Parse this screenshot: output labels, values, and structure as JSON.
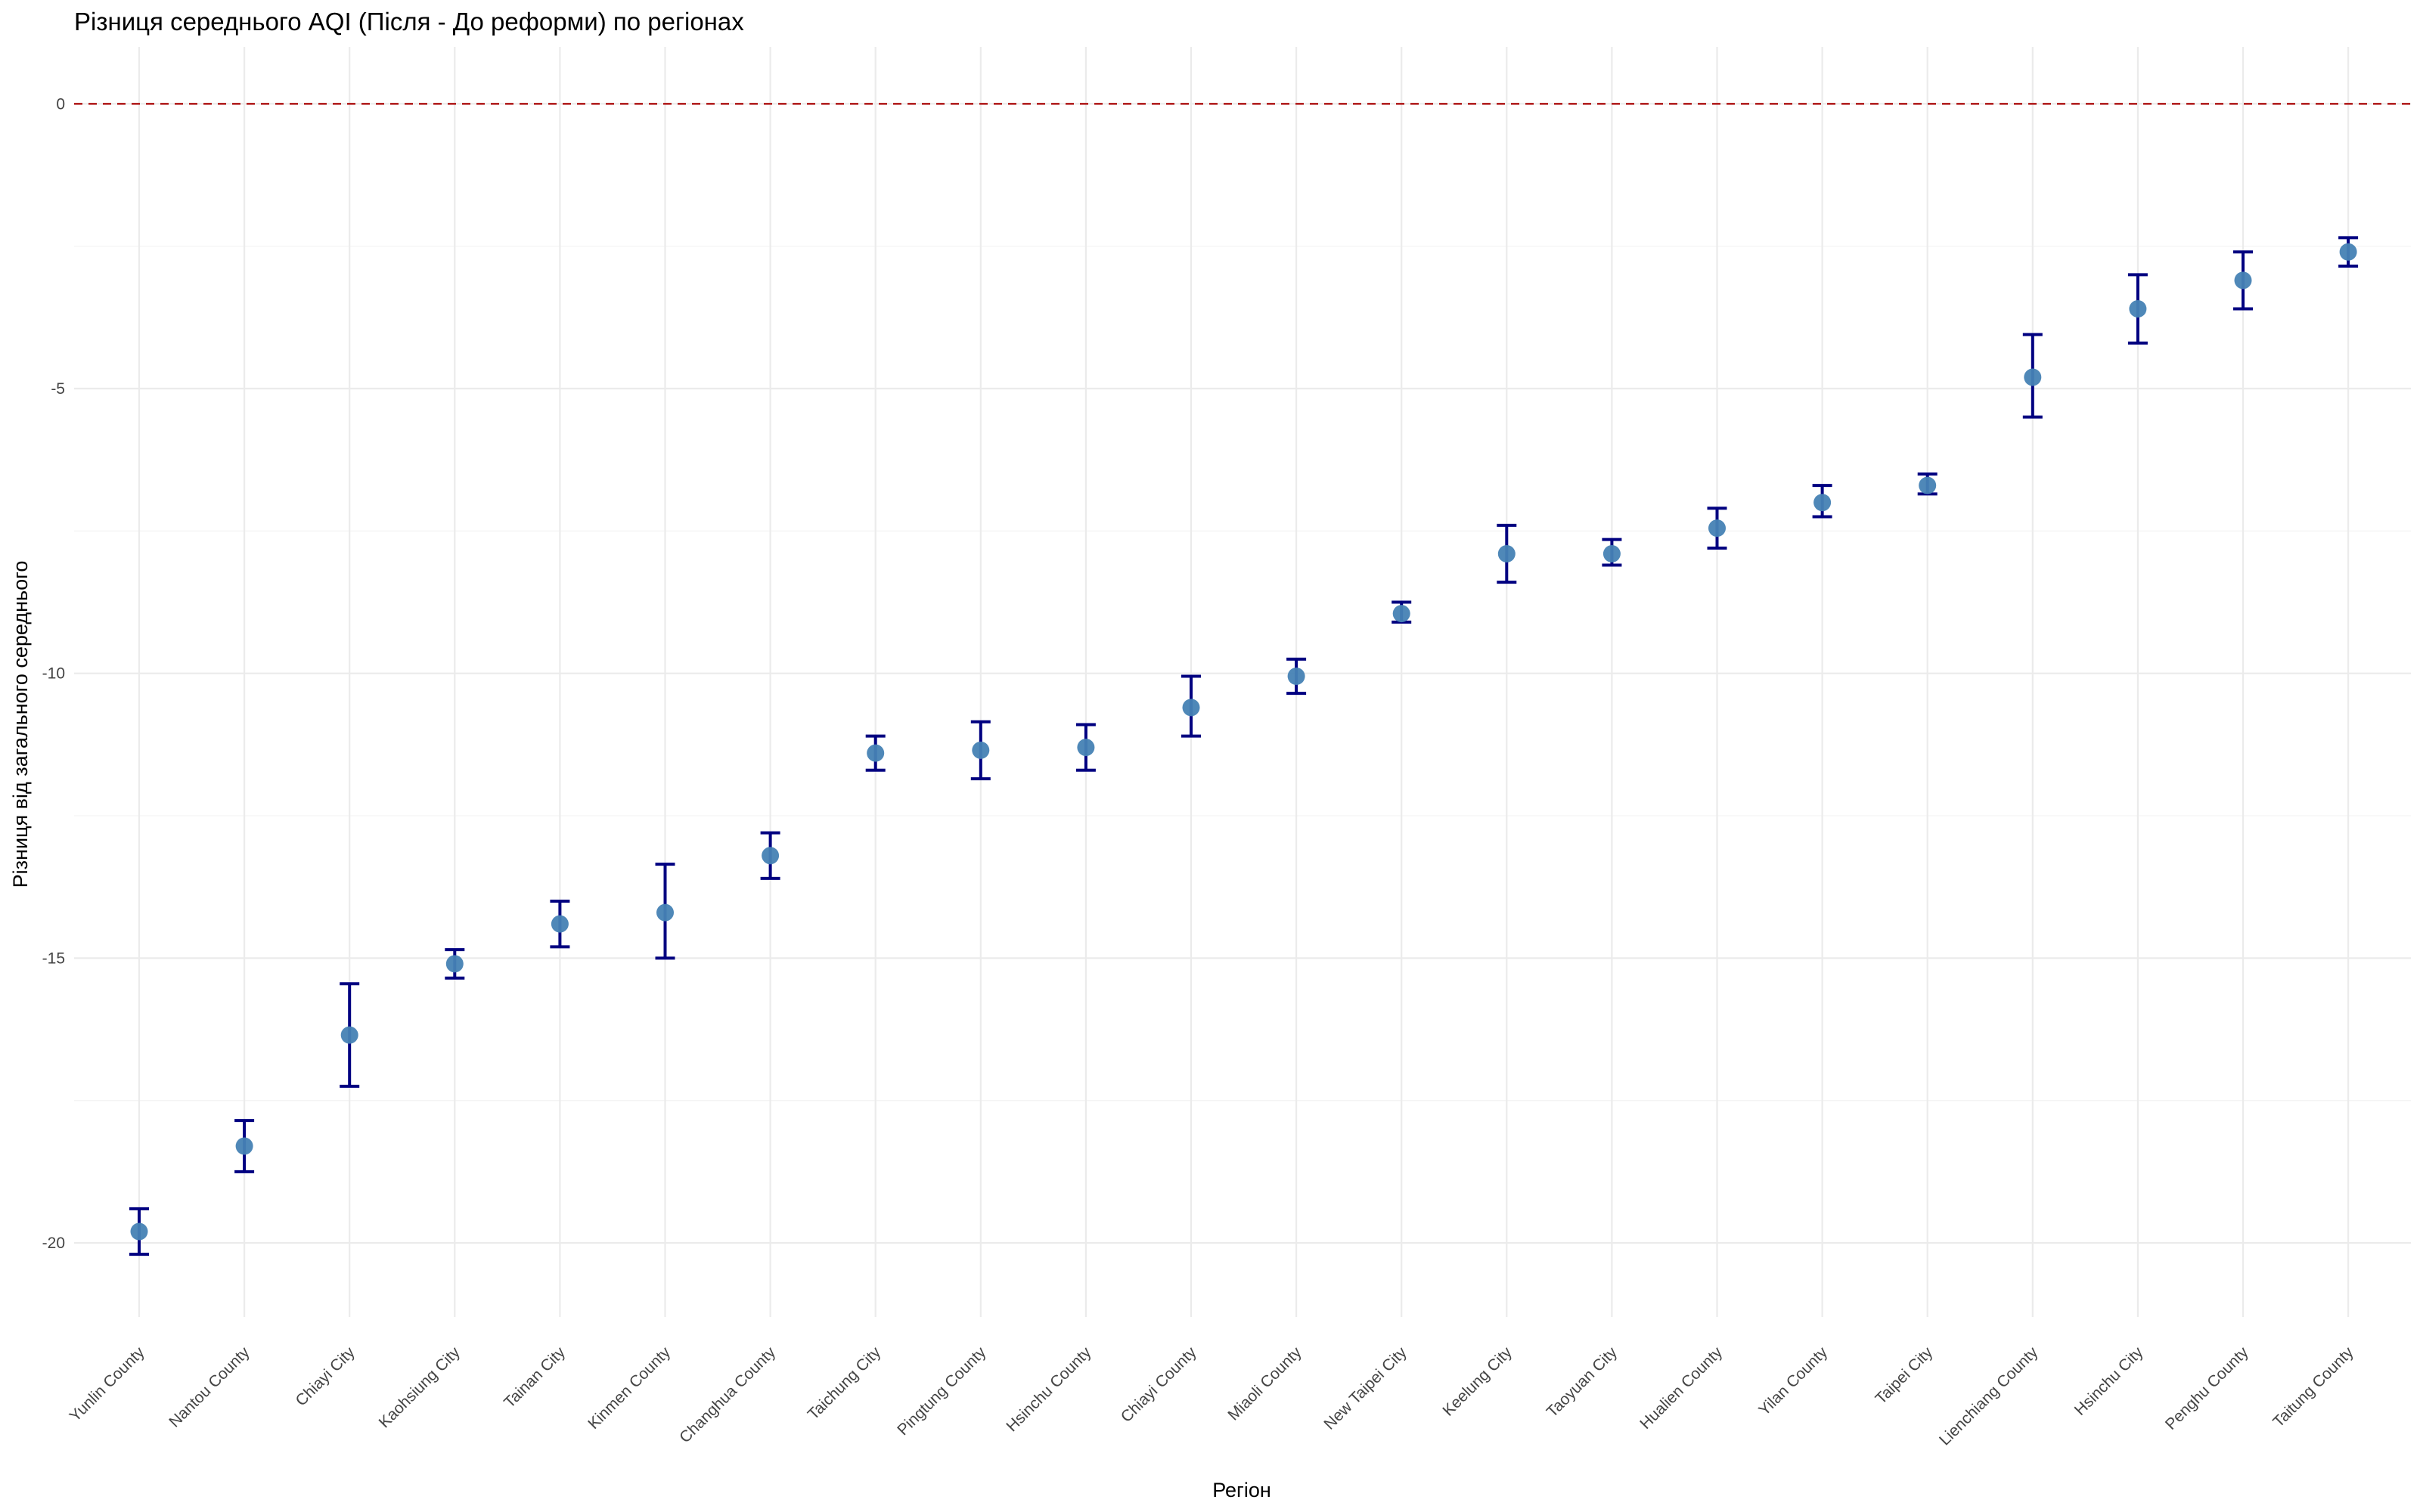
{
  "chart_data": {
    "type": "scatter",
    "title": "Різниця середнього AQI (Після - До реформи) по регіонах",
    "xlabel": "Регіон",
    "ylabel": "Різниця від загального середнього",
    "ylim": [
      -21.3,
      1.0
    ],
    "yticks": [
      0,
      -5,
      -10,
      -15,
      -20
    ],
    "grid": true,
    "reference_line": {
      "y": 0,
      "style": "dashed",
      "color": "#b22222"
    },
    "point_color": "#4682b4",
    "errorbar_color": "#000080",
    "categories": [
      "Yunlin County",
      "Nantou County",
      "Chiayi City",
      "Kaohsiung City",
      "Tainan City",
      "Kinmen County",
      "Changhua County",
      "Taichung City",
      "Pingtung County",
      "Hsinchu County",
      "Chiayi County",
      "Miaoli County",
      "New Taipei City",
      "Keelung City",
      "Taoyuan City",
      "Hualien County",
      "Yilan County",
      "Taipei City",
      "Lienchiang County",
      "Hsinchu City",
      "Penghu County",
      "Taitung County"
    ],
    "values": [
      -19.8,
      -18.3,
      -16.35,
      -15.1,
      -14.4,
      -14.2,
      -13.2,
      -11.4,
      -11.35,
      -11.3,
      -10.6,
      -10.05,
      -8.95,
      -7.9,
      -7.9,
      -7.45,
      -7.0,
      -6.7,
      -4.8,
      -3.6,
      -3.1,
      -2.6
    ],
    "lower": [
      -20.2,
      -18.75,
      -17.25,
      -15.35,
      -14.8,
      -15.0,
      -13.6,
      -11.7,
      -11.85,
      -11.7,
      -11.1,
      -10.35,
      -9.1,
      -8.4,
      -8.1,
      -7.8,
      -7.25,
      -6.85,
      -5.5,
      -4.2,
      -3.6,
      -2.85
    ],
    "upper": [
      -19.4,
      -17.85,
      -15.45,
      -14.85,
      -14.0,
      -13.35,
      -12.8,
      -11.1,
      -10.85,
      -10.9,
      -10.05,
      -9.75,
      -8.75,
      -7.4,
      -7.65,
      -7.1,
      -6.7,
      -6.5,
      -4.05,
      -3.0,
      -2.6,
      -2.35
    ]
  }
}
